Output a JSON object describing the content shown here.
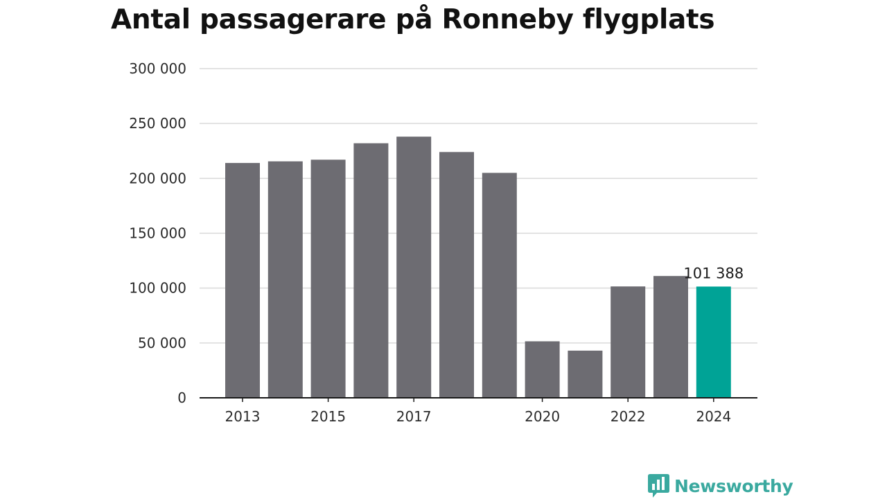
{
  "colors": {
    "bar": "#6d6c72",
    "highlight": "#00a396",
    "grid": "#d9d9d9",
    "axis": "#1a1a1a",
    "brand": "#3aa99f"
  },
  "brand": {
    "name": "Newsworthy",
    "icon": "bar-chart-speech-bubble-icon"
  },
  "chart_data": {
    "type": "bar",
    "title": "Antal passagerare på Ronneby flygplats",
    "xlabel": "",
    "ylabel": "",
    "ylim": [
      0,
      300000
    ],
    "yticks": [
      0,
      50000,
      100000,
      150000,
      200000,
      250000,
      300000
    ],
    "ytick_labels": [
      "0",
      "50 000",
      "100 000",
      "150 000",
      "200 000",
      "250 000",
      "300 000"
    ],
    "grid": true,
    "legend": "none",
    "categories": [
      "2013",
      "2014",
      "2015",
      "2016",
      "2017",
      "2018",
      "2019",
      "2020",
      "2021",
      "2022",
      "2023",
      "2024"
    ],
    "xtick_labels": [
      "2013",
      "",
      "2015",
      "",
      "2017",
      "",
      "",
      "2020",
      "",
      "2022",
      "",
      "2024"
    ],
    "values": [
      214000,
      215500,
      217000,
      232000,
      238000,
      224000,
      205000,
      51500,
      43000,
      101500,
      111000,
      101388
    ],
    "highlight_index": 11,
    "annotations": [
      {
        "category": "2024",
        "text": "101 388"
      }
    ]
  }
}
